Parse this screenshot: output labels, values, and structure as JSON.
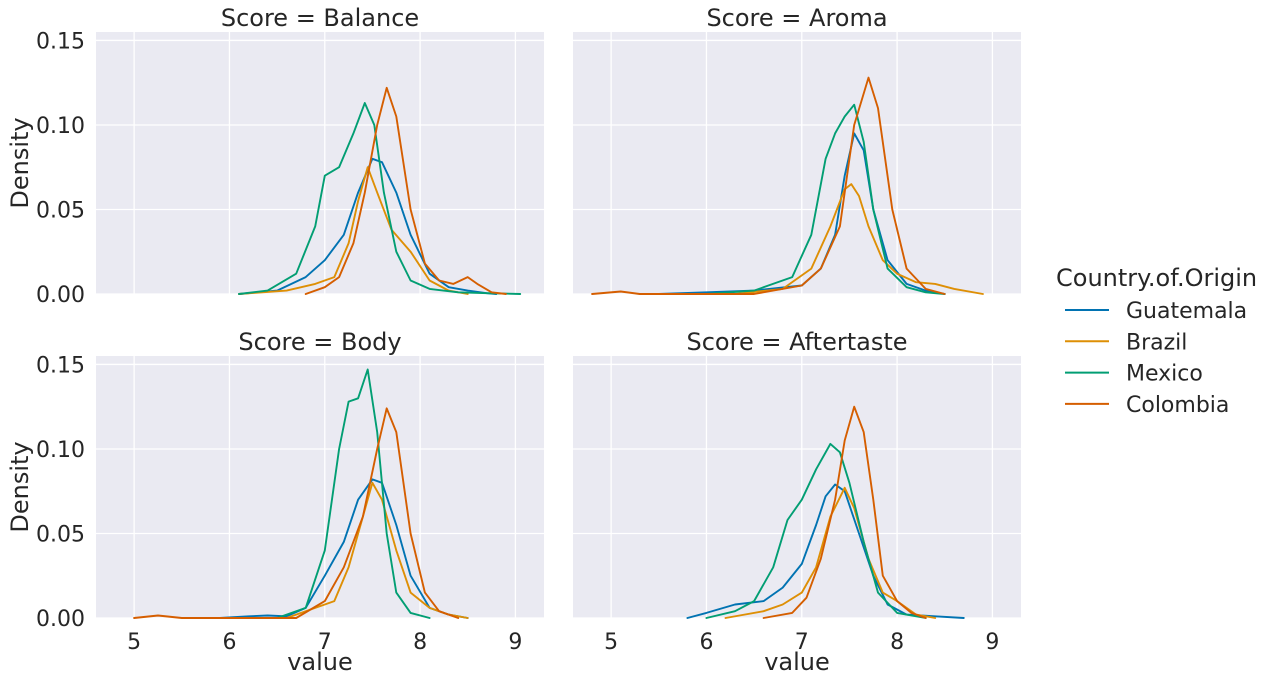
{
  "chart_data": {
    "type": "line",
    "facet_prefix": "Score = ",
    "xlabel": "value",
    "ylabel": "Density",
    "xlim": [
      4.6,
      9.3
    ],
    "ylim": [
      0,
      0.155
    ],
    "xticks": [
      "5",
      "6",
      "7",
      "8",
      "9"
    ],
    "yticks": [
      "0.00",
      "0.05",
      "0.10",
      "0.15"
    ],
    "grid": true,
    "legend": {
      "title": "Country.of.Origin",
      "placement": "right"
    },
    "series": [
      {
        "name": "Guatemala",
        "color": "#0173b2"
      },
      {
        "name": "Brazil",
        "color": "#de8f05"
      },
      {
        "name": "Mexico",
        "color": "#029e73"
      },
      {
        "name": "Colombia",
        "color": "#d55e00"
      }
    ],
    "panels": [
      {
        "facet": "Balance",
        "lines": {
          "Guatemala": [
            [
              6.1,
              0
            ],
            [
              6.5,
              0.002
            ],
            [
              6.8,
              0.01
            ],
            [
              7.0,
              0.02
            ],
            [
              7.2,
              0.035
            ],
            [
              7.35,
              0.06
            ],
            [
              7.5,
              0.08
            ],
            [
              7.6,
              0.078
            ],
            [
              7.75,
              0.06
            ],
            [
              7.9,
              0.035
            ],
            [
              8.1,
              0.012
            ],
            [
              8.3,
              0.004
            ],
            [
              8.5,
              0.002
            ],
            [
              8.7,
              0.0005
            ],
            [
              8.8,
              0
            ]
          ],
          "Brazil": [
            [
              6.1,
              0
            ],
            [
              6.6,
              0.002
            ],
            [
              6.9,
              0.006
            ],
            [
              7.1,
              0.01
            ],
            [
              7.25,
              0.03
            ],
            [
              7.35,
              0.055
            ],
            [
              7.45,
              0.075
            ],
            [
              7.55,
              0.06
            ],
            [
              7.7,
              0.038
            ],
            [
              7.9,
              0.025
            ],
            [
              8.1,
              0.008
            ],
            [
              8.3,
              0.002
            ],
            [
              8.5,
              0
            ]
          ],
          "Mexico": [
            [
              6.1,
              0
            ],
            [
              6.4,
              0.002
            ],
            [
              6.7,
              0.012
            ],
            [
              6.9,
              0.04
            ],
            [
              7.0,
              0.07
            ],
            [
              7.15,
              0.075
            ],
            [
              7.3,
              0.095
            ],
            [
              7.42,
              0.113
            ],
            [
              7.52,
              0.1
            ],
            [
              7.62,
              0.06
            ],
            [
              7.75,
              0.025
            ],
            [
              7.9,
              0.008
            ],
            [
              8.1,
              0.003
            ],
            [
              8.4,
              0.001
            ],
            [
              8.7,
              0.0005
            ],
            [
              9.05,
              0
            ]
          ],
          "Colombia": [
            [
              6.8,
              0
            ],
            [
              7.0,
              0.004
            ],
            [
              7.15,
              0.01
            ],
            [
              7.3,
              0.03
            ],
            [
              7.42,
              0.06
            ],
            [
              7.55,
              0.1
            ],
            [
              7.65,
              0.122
            ],
            [
              7.75,
              0.105
            ],
            [
              7.9,
              0.05
            ],
            [
              8.05,
              0.018
            ],
            [
              8.2,
              0.008
            ],
            [
              8.35,
              0.006
            ],
            [
              8.5,
              0.01
            ],
            [
              8.6,
              0.006
            ],
            [
              8.75,
              0.001
            ],
            [
              8.9,
              0
            ]
          ]
        }
      },
      {
        "facet": "Aroma",
        "lines": {
          "Guatemala": [
            [
              5.5,
              0
            ],
            [
              6.0,
              0.001
            ],
            [
              6.5,
              0.002
            ],
            [
              7.0,
              0.005
            ],
            [
              7.2,
              0.015
            ],
            [
              7.35,
              0.035
            ],
            [
              7.45,
              0.07
            ],
            [
              7.55,
              0.095
            ],
            [
              7.65,
              0.085
            ],
            [
              7.75,
              0.05
            ],
            [
              7.9,
              0.02
            ],
            [
              8.1,
              0.006
            ],
            [
              8.3,
              0.002
            ],
            [
              8.5,
              0
            ]
          ],
          "Brazil": [
            [
              6.3,
              0
            ],
            [
              6.8,
              0.003
            ],
            [
              7.1,
              0.015
            ],
            [
              7.3,
              0.04
            ],
            [
              7.45,
              0.062
            ],
            [
              7.52,
              0.065
            ],
            [
              7.6,
              0.058
            ],
            [
              7.7,
              0.04
            ],
            [
              7.85,
              0.02
            ],
            [
              8.0,
              0.012
            ],
            [
              8.2,
              0.007
            ],
            [
              8.4,
              0.006
            ],
            [
              8.6,
              0.003
            ],
            [
              8.9,
              0
            ]
          ],
          "Mexico": [
            [
              6.0,
              0
            ],
            [
              6.5,
              0.002
            ],
            [
              6.9,
              0.01
            ],
            [
              7.1,
              0.035
            ],
            [
              7.25,
              0.08
            ],
            [
              7.35,
              0.095
            ],
            [
              7.45,
              0.105
            ],
            [
              7.55,
              0.112
            ],
            [
              7.65,
              0.09
            ],
            [
              7.75,
              0.05
            ],
            [
              7.9,
              0.015
            ],
            [
              8.1,
              0.004
            ],
            [
              8.3,
              0.001
            ],
            [
              8.5,
              0
            ]
          ],
          "Colombia": [
            [
              4.8,
              0
            ],
            [
              5.1,
              0.0015
            ],
            [
              5.3,
              0
            ],
            [
              6.5,
              0
            ],
            [
              7.0,
              0.005
            ],
            [
              7.2,
              0.015
            ],
            [
              7.4,
              0.04
            ],
            [
              7.55,
              0.1
            ],
            [
              7.7,
              0.128
            ],
            [
              7.8,
              0.11
            ],
            [
              7.95,
              0.05
            ],
            [
              8.1,
              0.015
            ],
            [
              8.3,
              0.003
            ],
            [
              8.5,
              0
            ]
          ]
        }
      },
      {
        "facet": "Body",
        "lines": {
          "Guatemala": [
            [
              5.9,
              0
            ],
            [
              6.2,
              0.001
            ],
            [
              6.4,
              0.0015
            ],
            [
              6.6,
              0.001
            ],
            [
              6.8,
              0.006
            ],
            [
              7.0,
              0.025
            ],
            [
              7.2,
              0.045
            ],
            [
              7.35,
              0.07
            ],
            [
              7.5,
              0.082
            ],
            [
              7.6,
              0.08
            ],
            [
              7.75,
              0.055
            ],
            [
              7.9,
              0.025
            ],
            [
              8.1,
              0.006
            ],
            [
              8.3,
              0.002
            ],
            [
              8.5,
              0
            ]
          ],
          "Brazil": [
            [
              6.6,
              0
            ],
            [
              6.9,
              0.006
            ],
            [
              7.1,
              0.01
            ],
            [
              7.25,
              0.03
            ],
            [
              7.4,
              0.06
            ],
            [
              7.5,
              0.08
            ],
            [
              7.6,
              0.07
            ],
            [
              7.75,
              0.04
            ],
            [
              7.9,
              0.015
            ],
            [
              8.1,
              0.006
            ],
            [
              8.3,
              0.002
            ],
            [
              8.5,
              0
            ]
          ],
          "Mexico": [
            [
              6.5,
              0
            ],
            [
              6.8,
              0.006
            ],
            [
              7.0,
              0.04
            ],
            [
              7.15,
              0.1
            ],
            [
              7.25,
              0.128
            ],
            [
              7.35,
              0.13
            ],
            [
              7.45,
              0.147
            ],
            [
              7.55,
              0.11
            ],
            [
              7.65,
              0.05
            ],
            [
              7.75,
              0.015
            ],
            [
              7.9,
              0.003
            ],
            [
              8.1,
              0
            ]
          ],
          "Colombia": [
            [
              5.0,
              0
            ],
            [
              5.25,
              0.0015
            ],
            [
              5.5,
              0
            ],
            [
              6.7,
              0
            ],
            [
              7.0,
              0.01
            ],
            [
              7.2,
              0.03
            ],
            [
              7.4,
              0.06
            ],
            [
              7.55,
              0.1
            ],
            [
              7.65,
              0.124
            ],
            [
              7.75,
              0.11
            ],
            [
              7.9,
              0.05
            ],
            [
              8.05,
              0.015
            ],
            [
              8.2,
              0.004
            ],
            [
              8.4,
              0
            ]
          ]
        }
      },
      {
        "facet": "Aftertaste",
        "lines": {
          "Guatemala": [
            [
              5.8,
              0
            ],
            [
              6.0,
              0.003
            ],
            [
              6.3,
              0.008
            ],
            [
              6.6,
              0.01
            ],
            [
              6.8,
              0.018
            ],
            [
              7.0,
              0.032
            ],
            [
              7.15,
              0.055
            ],
            [
              7.25,
              0.072
            ],
            [
              7.35,
              0.079
            ],
            [
              7.45,
              0.075
            ],
            [
              7.6,
              0.05
            ],
            [
              7.75,
              0.025
            ],
            [
              7.9,
              0.008
            ],
            [
              8.1,
              0.002
            ],
            [
              8.4,
              0.001
            ],
            [
              8.7,
              0
            ]
          ],
          "Brazil": [
            [
              6.2,
              0
            ],
            [
              6.6,
              0.004
            ],
            [
              6.8,
              0.008
            ],
            [
              7.0,
              0.015
            ],
            [
              7.15,
              0.03
            ],
            [
              7.3,
              0.06
            ],
            [
              7.45,
              0.077
            ],
            [
              7.55,
              0.065
            ],
            [
              7.7,
              0.035
            ],
            [
              7.85,
              0.015
            ],
            [
              8.0,
              0.01
            ],
            [
              8.2,
              0.002
            ],
            [
              8.4,
              0
            ]
          ],
          "Mexico": [
            [
              6.0,
              0
            ],
            [
              6.3,
              0.004
            ],
            [
              6.5,
              0.01
            ],
            [
              6.7,
              0.03
            ],
            [
              6.85,
              0.058
            ],
            [
              7.0,
              0.07
            ],
            [
              7.15,
              0.088
            ],
            [
              7.3,
              0.103
            ],
            [
              7.4,
              0.098
            ],
            [
              7.5,
              0.08
            ],
            [
              7.65,
              0.045
            ],
            [
              7.8,
              0.015
            ],
            [
              8.0,
              0.003
            ],
            [
              8.3,
              0
            ]
          ],
          "Colombia": [
            [
              6.6,
              0
            ],
            [
              6.9,
              0.003
            ],
            [
              7.05,
              0.012
            ],
            [
              7.2,
              0.035
            ],
            [
              7.35,
              0.07
            ],
            [
              7.45,
              0.105
            ],
            [
              7.55,
              0.125
            ],
            [
              7.65,
              0.11
            ],
            [
              7.75,
              0.07
            ],
            [
              7.85,
              0.025
            ],
            [
              8.0,
              0.01
            ],
            [
              8.15,
              0.003
            ],
            [
              8.3,
              0
            ]
          ]
        }
      }
    ]
  }
}
